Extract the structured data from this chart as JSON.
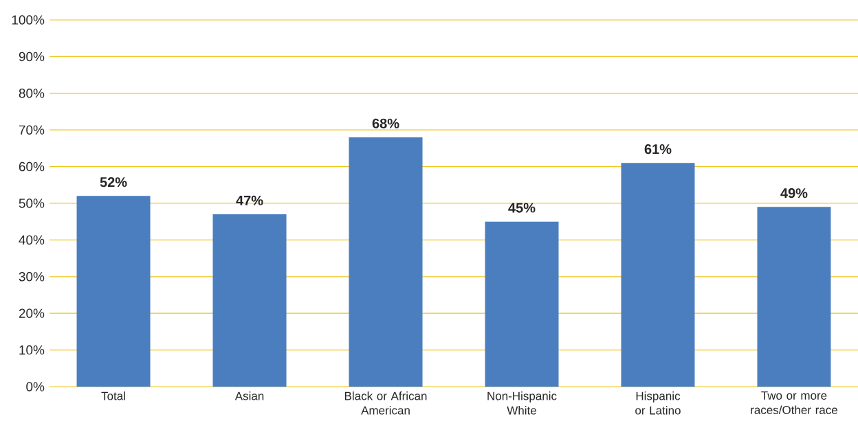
{
  "chart_data": {
    "type": "bar",
    "categories": [
      "Total",
      "Asian",
      "Black or African American",
      "Non-Hispanic White",
      "Hispanic or Latino",
      "Two or more races/Other race"
    ],
    "values": [
      52,
      47,
      68,
      45,
      61,
      49
    ],
    "value_labels": [
      "52%",
      "47%",
      "68%",
      "45%",
      "61%",
      "49%"
    ],
    "color": "#4a7ebf",
    "ylim": [
      0,
      100
    ],
    "yticks": [
      {
        "value": 0,
        "label": "0%"
      },
      {
        "value": 10,
        "label": "10%"
      },
      {
        "value": 20,
        "label": "20%"
      },
      {
        "value": 30,
        "label": "30%"
      },
      {
        "value": 40,
        "label": "40%"
      },
      {
        "value": 50,
        "label": "50%"
      },
      {
        "value": 60,
        "label": "60%"
      },
      {
        "value": 70,
        "label": "70%"
      },
      {
        "value": 80,
        "label": "80%"
      },
      {
        "value": 90,
        "label": "90%"
      },
      {
        "value": 100,
        "label": "100%"
      }
    ],
    "grid": "y"
  }
}
